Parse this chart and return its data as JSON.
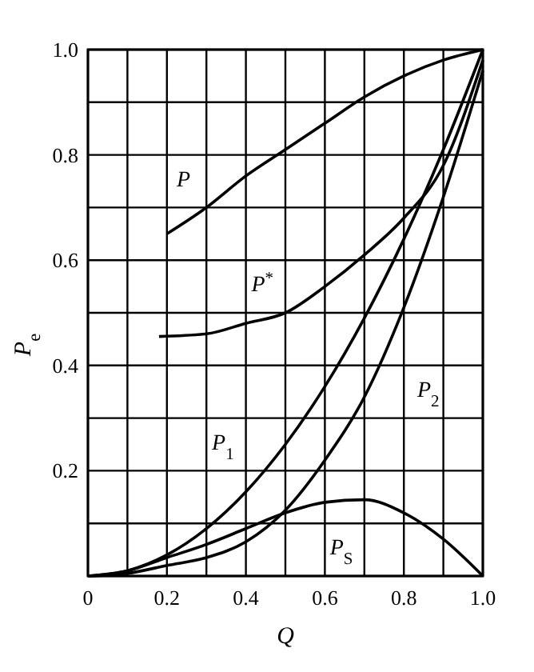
{
  "chart_data": {
    "type": "line",
    "xlabel": "Q",
    "ylabel": "P$_{e}$",
    "xlim": [
      0,
      1
    ],
    "ylim": [
      0,
      1
    ],
    "xticks": [
      0,
      {
        "value": 0.1,
        "label": null
      },
      0.2,
      {
        "value": 0.3,
        "label": null
      },
      0.4,
      {
        "value": 0.5,
        "label": null
      },
      0.6,
      {
        "value": 0.7,
        "label": null
      },
      0.8,
      {
        "value": 0.9,
        "label": null
      },
      {
        "value": 1.0,
        "label": "1.0"
      }
    ],
    "yticks": [
      {
        "value": 0,
        "label": null
      },
      {
        "value": 0.1,
        "label": null
      },
      0.2,
      {
        "value": 0.3,
        "label": null
      },
      0.4,
      {
        "value": 0.5,
        "label": null
      },
      0.6,
      {
        "value": 0.7,
        "label": null
      },
      0.8,
      {
        "value": 0.9,
        "label": null
      },
      {
        "value": 1.0,
        "label": "1.0"
      }
    ],
    "grid": true,
    "legend": false,
    "marker": "none",
    "line_style": "solid",
    "series": [
      {
        "name": "P",
        "color": "#000000",
        "x": [
          0.2,
          0.3,
          0.4,
          0.5,
          0.6,
          0.7,
          0.8,
          0.9,
          1.0
        ],
        "values": [
          0.65,
          0.7,
          0.76,
          0.81,
          0.86,
          0.91,
          0.95,
          0.98,
          1.0
        ]
      },
      {
        "name": "P$^{*}$",
        "color": "#000000",
        "x": [
          0.18,
          0.3,
          0.4,
          0.5,
          0.6,
          0.7,
          0.8,
          0.9,
          1.0
        ],
        "values": [
          0.455,
          0.46,
          0.48,
          0.5,
          0.55,
          0.61,
          0.68,
          0.78,
          0.98
        ]
      },
      {
        "name": "P$_{1}$",
        "color": "#000000",
        "x": [
          0,
          0.1,
          0.2,
          0.3,
          0.4,
          0.5,
          0.6,
          0.7,
          0.8,
          0.9,
          1.0
        ],
        "values": [
          0,
          0.01,
          0.04,
          0.09,
          0.16,
          0.25,
          0.36,
          0.49,
          0.64,
          0.81,
          1.0
        ]
      },
      {
        "name": "P$_{2}$",
        "color": "#000000",
        "x": [
          0,
          0.1,
          0.2,
          0.3,
          0.4,
          0.5,
          0.6,
          0.7,
          0.8,
          0.9,
          1.0
        ],
        "values": [
          0,
          0.005,
          0.02,
          0.035,
          0.065,
          0.125,
          0.22,
          0.34,
          0.51,
          0.72,
          0.96
        ]
      },
      {
        "name": "P$_{S}$",
        "color": "#000000",
        "x": [
          0,
          0.1,
          0.2,
          0.3,
          0.4,
          0.5,
          0.6,
          0.7,
          0.8,
          0.9,
          1.0
        ],
        "values": [
          0,
          0.01,
          0.035,
          0.06,
          0.09,
          0.12,
          0.14,
          0.145,
          0.12,
          0.07,
          0
        ]
      }
    ]
  }
}
